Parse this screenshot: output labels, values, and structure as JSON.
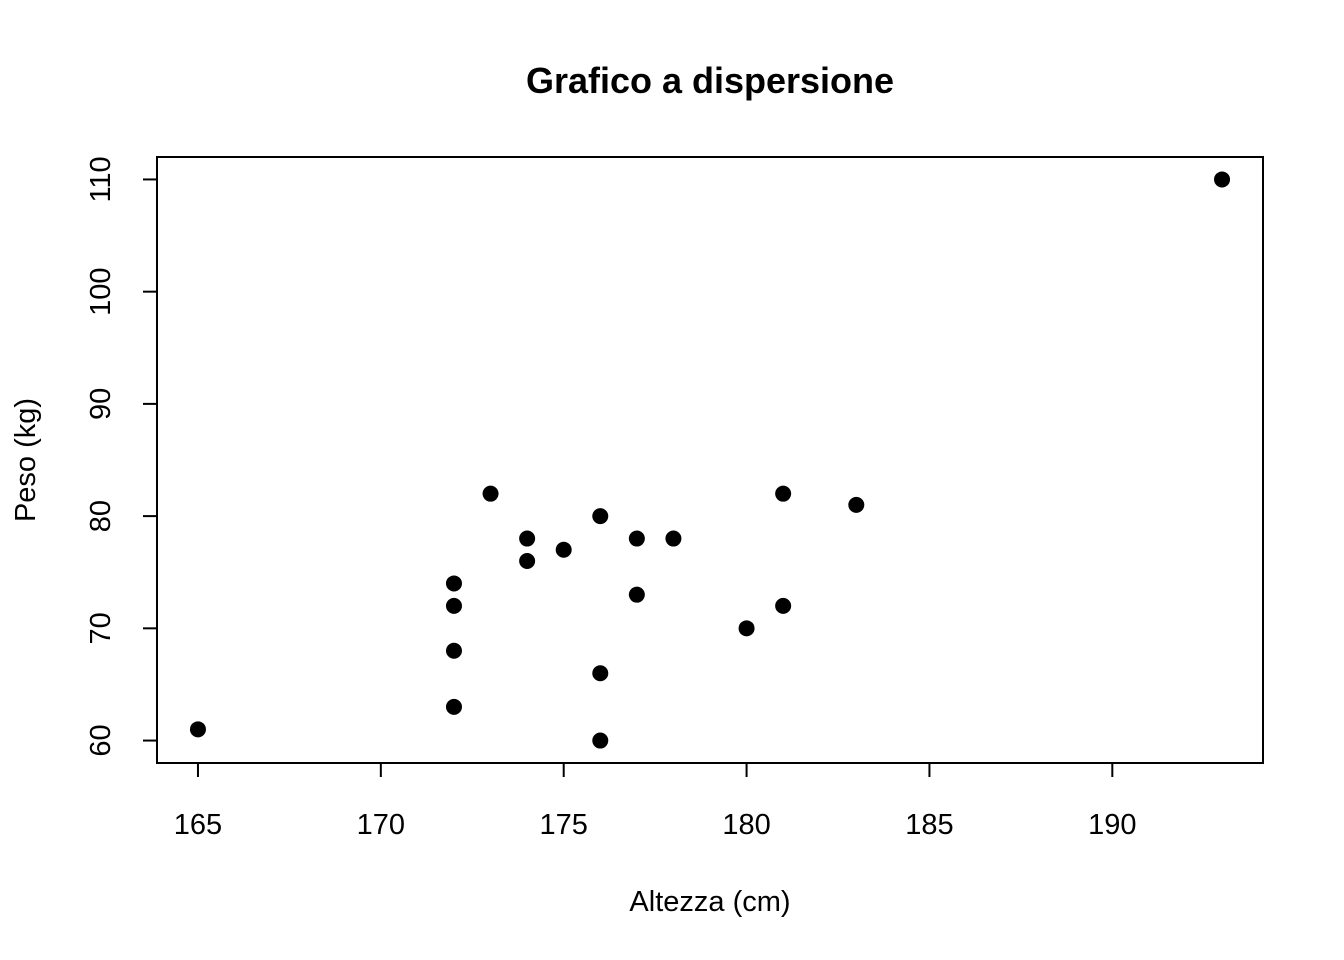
{
  "chart_data": {
    "type": "scatter",
    "title": "Grafico a dispersione",
    "xlabel": "Altezza (cm)",
    "ylabel": "Peso (kg)",
    "xlim": [
      163.88,
      194.12
    ],
    "ylim": [
      58,
      112
    ],
    "x_ticks": [
      165,
      170,
      175,
      180,
      185,
      190
    ],
    "y_ticks": [
      60,
      70,
      80,
      90,
      100,
      110
    ],
    "grid": false,
    "point_color": "#000000",
    "points": [
      {
        "x": 165,
        "y": 61
      },
      {
        "x": 172,
        "y": 74
      },
      {
        "x": 172,
        "y": 72
      },
      {
        "x": 172,
        "y": 68
      },
      {
        "x": 172,
        "y": 63
      },
      {
        "x": 173,
        "y": 82
      },
      {
        "x": 174,
        "y": 78
      },
      {
        "x": 174,
        "y": 76
      },
      {
        "x": 175,
        "y": 77
      },
      {
        "x": 176,
        "y": 80
      },
      {
        "x": 176,
        "y": 66
      },
      {
        "x": 176,
        "y": 60
      },
      {
        "x": 177,
        "y": 78
      },
      {
        "x": 177,
        "y": 73
      },
      {
        "x": 178,
        "y": 78
      },
      {
        "x": 180,
        "y": 70
      },
      {
        "x": 181,
        "y": 82
      },
      {
        "x": 181,
        "y": 72
      },
      {
        "x": 183,
        "y": 81
      },
      {
        "x": 193,
        "y": 110
      }
    ]
  }
}
